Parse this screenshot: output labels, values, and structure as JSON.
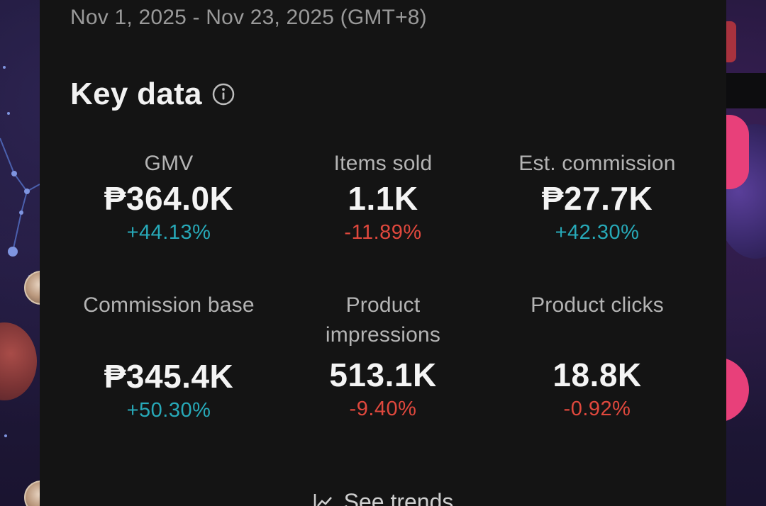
{
  "date_range": "Nov 1, 2025 - Nov 23, 2025 (GMT+8)",
  "section": {
    "title": "Key data",
    "info_icon": "info-icon"
  },
  "metrics": [
    {
      "label": "GMV",
      "value": "₱364.0K",
      "change": "+44.13%",
      "trend": "up"
    },
    {
      "label": "Items sold",
      "value": "1.1K",
      "change": "-11.89%",
      "trend": "down"
    },
    {
      "label": "Est. commission",
      "value": "₱27.7K",
      "change": "+42.30%",
      "trend": "up"
    },
    {
      "label": "Commission base",
      "value": "₱345.4K",
      "change": "+50.30%",
      "trend": "up"
    },
    {
      "label": "Product impressions",
      "value": "513.1K",
      "change": "-9.40%",
      "trend": "down"
    },
    {
      "label": "Product clicks",
      "value": "18.8K",
      "change": "-0.92%",
      "trend": "down"
    }
  ],
  "see_trends": {
    "label": "See trends",
    "icon": "trend-chart-icon"
  },
  "colors": {
    "positive": "#27a9b8",
    "negative": "#e0483d",
    "panel_bg": "#141414"
  }
}
